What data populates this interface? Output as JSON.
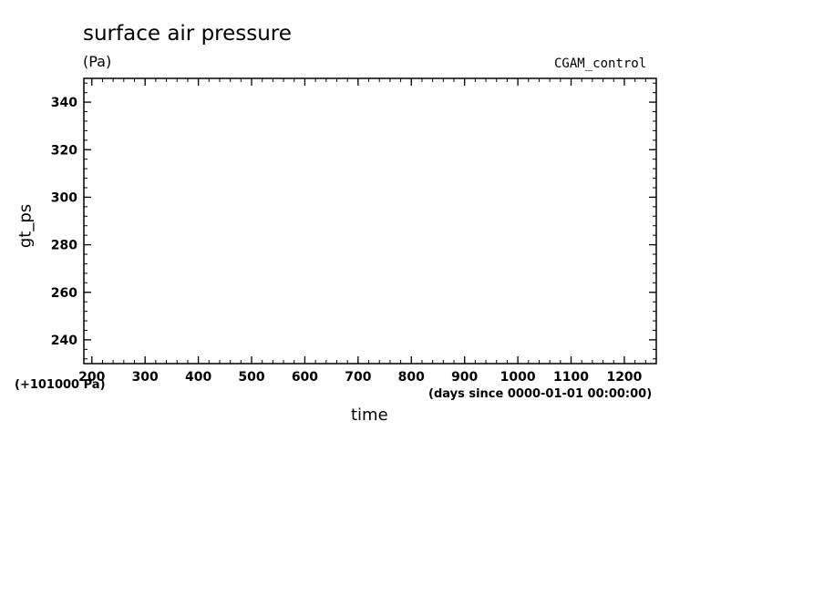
{
  "chart_data": {
    "type": "line",
    "title": "surface air pressure",
    "unit_label": "(Pa)",
    "run_label": "CGAM_control",
    "ylabel": "gt_ps",
    "y_offset_label": "(+101000 Pa)",
    "xlabel": "time",
    "x_units_label": "(days since 0000-01-01 00:00:00)",
    "xlim": [
      185,
      1260
    ],
    "ylim": [
      230,
      350
    ],
    "x_ticks": [
      200,
      300,
      400,
      500,
      600,
      700,
      800,
      900,
      1000,
      1100,
      1200
    ],
    "y_ticks": [
      240,
      260,
      280,
      300,
      320,
      340
    ],
    "x_minor_step": 20,
    "y_minor_step": 4,
    "series": [],
    "grid": false
  }
}
